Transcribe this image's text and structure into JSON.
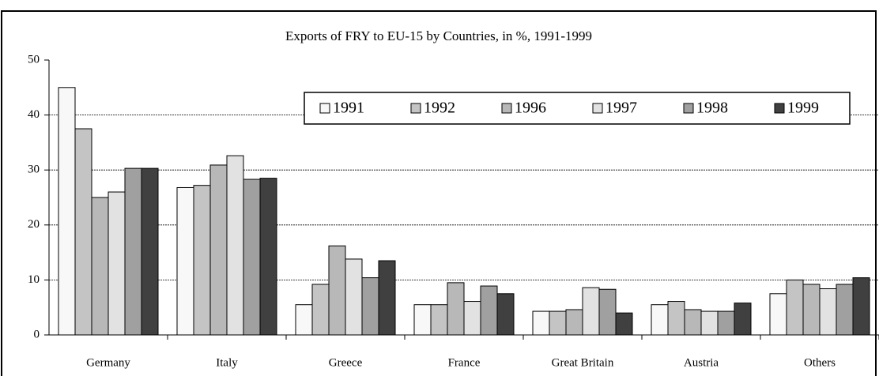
{
  "chart_data": {
    "type": "bar",
    "title": "Exports of FRY to EU-15 by Countries, in %, 1991-1999",
    "categories": [
      "Germany",
      "Italy",
      "Greece",
      "France",
      "Great Britain",
      "Austria",
      "Others"
    ],
    "series": [
      {
        "name": "1991",
        "color": "#f8f8f8",
        "values": [
          45,
          26.8,
          5.5,
          5.5,
          4.3,
          5.5,
          7.5
        ]
      },
      {
        "name": "1992",
        "color": "#c4c4c4",
        "values": [
          37.5,
          27.2,
          9.2,
          5.5,
          4.3,
          6.1,
          10
        ]
      },
      {
        "name": "1996",
        "color": "#b8b8b8",
        "values": [
          25,
          30.9,
          16.2,
          9.5,
          4.6,
          4.6,
          9.2
        ]
      },
      {
        "name": "1997",
        "color": "#e2e2e2",
        "values": [
          26,
          32.6,
          13.8,
          6.1,
          8.6,
          4.3,
          8.4
        ]
      },
      {
        "name": "1998",
        "color": "#a0a0a0",
        "values": [
          30.3,
          28.3,
          10.4,
          8.9,
          8.3,
          4.3,
          9.2
        ]
      },
      {
        "name": "1999",
        "color": "#404040",
        "values": [
          30.3,
          28.5,
          13.5,
          7.5,
          4.0,
          5.8,
          10.4
        ]
      }
    ],
    "ylim": [
      0,
      50
    ],
    "yticks": [
      0,
      10,
      20,
      30,
      40,
      50
    ],
    "grid": true,
    "legend": "top-right"
  }
}
